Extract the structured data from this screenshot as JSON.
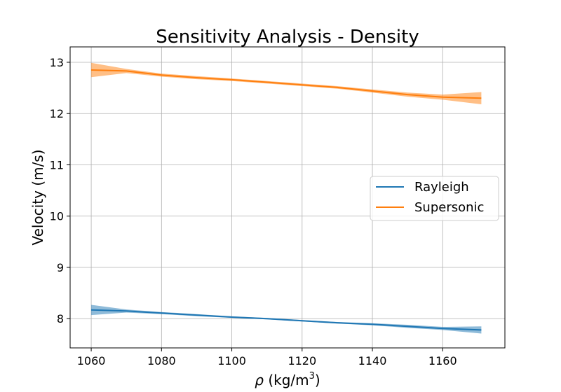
{
  "chart_data": {
    "type": "line",
    "title": "Sensitivity Analysis - Density",
    "xlabel_symbol": "ρ",
    "xlabel_unit_prefix": "(kg/m",
    "xlabel_unit_exp": "3",
    "xlabel_unit_suffix": ")",
    "ylabel": "Velocity (m/s)",
    "xlim": [
      1054,
      1177.7
    ],
    "ylim": [
      7.43,
      13.3
    ],
    "xticks": [
      1060,
      1080,
      1100,
      1120,
      1140,
      1160
    ],
    "yticks": [
      8,
      9,
      10,
      11,
      12,
      13
    ],
    "grid": true,
    "legend_position": "center-right",
    "series": [
      {
        "name": "Rayleigh",
        "color": "#1f77b4",
        "x": [
          1060,
          1070,
          1080,
          1090,
          1100,
          1110,
          1120,
          1130,
          1140,
          1150,
          1160,
          1171
        ],
        "y": [
          8.17,
          8.15,
          8.11,
          8.07,
          8.03,
          8.0,
          7.96,
          7.92,
          7.89,
          7.85,
          7.81,
          7.78
        ],
        "band": [
          0.1,
          0.03,
          0.02,
          0.02,
          0.015,
          0.015,
          0.015,
          0.015,
          0.02,
          0.03,
          0.03,
          0.07
        ]
      },
      {
        "name": "Supersonic",
        "color": "#ff7f0e",
        "x": [
          1060,
          1070,
          1080,
          1090,
          1100,
          1110,
          1120,
          1130,
          1140,
          1150,
          1160,
          1171
        ],
        "y": [
          12.85,
          12.83,
          12.75,
          12.7,
          12.66,
          12.61,
          12.56,
          12.51,
          12.44,
          12.37,
          12.32,
          12.3
        ],
        "band": [
          0.14,
          0.04,
          0.03,
          0.03,
          0.025,
          0.025,
          0.025,
          0.025,
          0.03,
          0.04,
          0.05,
          0.12
        ]
      }
    ]
  }
}
